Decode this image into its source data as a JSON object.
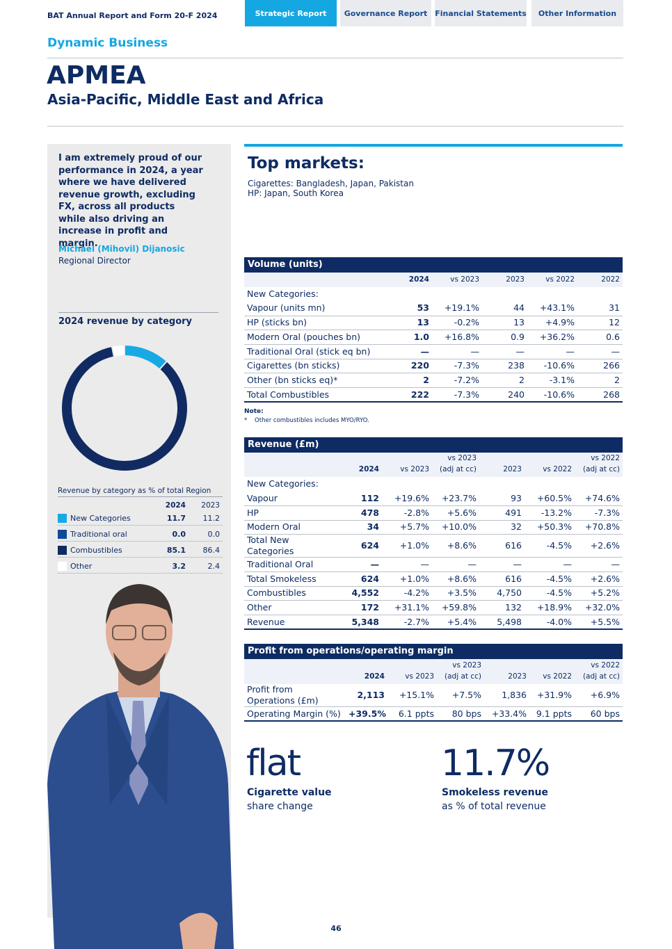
{
  "header": {
    "report_title": "BAT Annual Report and Form 20-F 2024",
    "tabs": [
      "Strategic Report",
      "Governance Report",
      "Financial Statements",
      "Other Information"
    ]
  },
  "section": "Dynamic Business",
  "title": "APMEA",
  "subtitle": "Asia-Pacific, Middle East and Africa",
  "quote": {
    "text": "I am extremely proud of our performance in 2024, a year where we have delivered revenue growth, excluding FX, across all products while also driving an increase in profit and margin.",
    "author": "Michael (Mihovil) Dijanosic",
    "role": "Regional Director"
  },
  "revenue_chart": {
    "type": "donut",
    "title": "2024 revenue by category",
    "caption": "Revenue by category as % of total Region",
    "columns": [
      "2024",
      "2023"
    ],
    "categories": [
      "New Categories",
      "Traditional oral",
      "Combustibles",
      "Other"
    ],
    "colors": [
      "#17a9e4",
      "#0d4b98",
      "#112b62",
      "#ffffff"
    ],
    "values": [
      11.7,
      0.0,
      85.1,
      3.2
    ],
    "value_labels": [
      "11.7",
      "0.0",
      "85.1",
      "3.2"
    ],
    "prior_labels": [
      "11.2",
      "0.0",
      "86.4",
      "2.4"
    ]
  },
  "top_markets": {
    "title": "Top markets:",
    "lines": [
      "Cigarettes: Bangladesh, Japan, Pakistan",
      "HP: Japan, South Korea"
    ]
  },
  "volume_table": {
    "title": "Volume (units)",
    "columns": [
      "2024",
      "vs 2023",
      "2023",
      "vs 2022",
      "2022"
    ],
    "rows": [
      [
        "New Categories:"
      ],
      [
        "Vapour (units mn)",
        "53",
        "+19.1%",
        "44",
        "+43.1%",
        "31"
      ],
      [
        "HP (sticks bn)",
        "13",
        "-0.2%",
        "13",
        "+4.9%",
        "12"
      ],
      [
        "Modern Oral (pouches bn)",
        "1.0",
        "+16.8%",
        "0.9",
        "+36.2%",
        "0.6"
      ],
      [
        "Traditional Oral (stick eq bn)",
        "—",
        "—",
        "—",
        "—",
        "—"
      ],
      [
        "Cigarettes (bn sticks)",
        "220",
        "-7.3%",
        "238",
        "-10.6%",
        "266"
      ],
      [
        "Other (bn sticks eq)*",
        "2",
        "-7.2%",
        "2",
        "-3.1%",
        "2"
      ],
      [
        "Total Combustibles",
        "222",
        "-7.3%",
        "240",
        "-10.6%",
        "268"
      ]
    ],
    "note_title": "Note:",
    "note": "*    Other combustibles includes MYO/RYO."
  },
  "revenue_table": {
    "title": "Revenue (£m)",
    "columns": [
      "2024",
      "vs 2023",
      "vs 2023\n(adj at cc)",
      "2023",
      "vs 2022",
      "vs 2022\n(adj at cc)"
    ],
    "rows": [
      [
        "New Categories:"
      ],
      [
        "Vapour",
        "112",
        "+19.6%",
        "+23.7%",
        "93",
        "+60.5%",
        "+74.6%"
      ],
      [
        "HP",
        "478",
        "-2.8%",
        "+5.6%",
        "491",
        "-13.2%",
        "-7.3%"
      ],
      [
        "Modern Oral",
        "34",
        "+5.7%",
        "+10.0%",
        "32",
        "+50.3%",
        "+70.8%"
      ],
      [
        "Total New\nCategories",
        "624",
        "+1.0%",
        "+8.6%",
        "616",
        "-4.5%",
        "+2.6%"
      ],
      [
        "Traditional Oral",
        "—",
        "—",
        "—",
        "—",
        "—",
        "—"
      ],
      [
        "Total Smokeless",
        "624",
        "+1.0%",
        "+8.6%",
        "616",
        "-4.5%",
        "+2.6%"
      ],
      [
        "Combustibles",
        "4,552",
        "-4.2%",
        "+3.5%",
        "4,750",
        "-4.5%",
        "+5.2%"
      ],
      [
        "Other",
        "172",
        "+31.1%",
        "+59.8%",
        "132",
        "+18.9%",
        "+32.0%"
      ],
      [
        "Revenue",
        "5,348",
        "-2.7%",
        "+5.4%",
        "5,498",
        "-4.0%",
        "+5.5%"
      ]
    ]
  },
  "profit_table": {
    "title": "Profit from operations/operating margin",
    "columns": [
      "2024",
      "vs 2023",
      "vs 2023\n(adj at cc)",
      "2023",
      "vs 2022",
      "vs 2022\n(adj at cc)"
    ],
    "rows": [
      [
        "Profit from\nOperations (£m)",
        "2,113",
        "+15.1%",
        "+7.5%",
        "1,836",
        "+31.9%",
        "+6.9%"
      ],
      [
        "Operating Margin (%)",
        "+39.5%",
        "6.1 ppts",
        "80 bps",
        "+33.4%",
        "9.1 ppts",
        "60 bps"
      ]
    ]
  },
  "kpis": [
    {
      "value": "flat",
      "label": "Cigarette value",
      "sub": "share change"
    },
    {
      "value": "11.7%",
      "label": "Smokeless revenue",
      "sub": "as % of total revenue"
    }
  ],
  "page_number": "46"
}
